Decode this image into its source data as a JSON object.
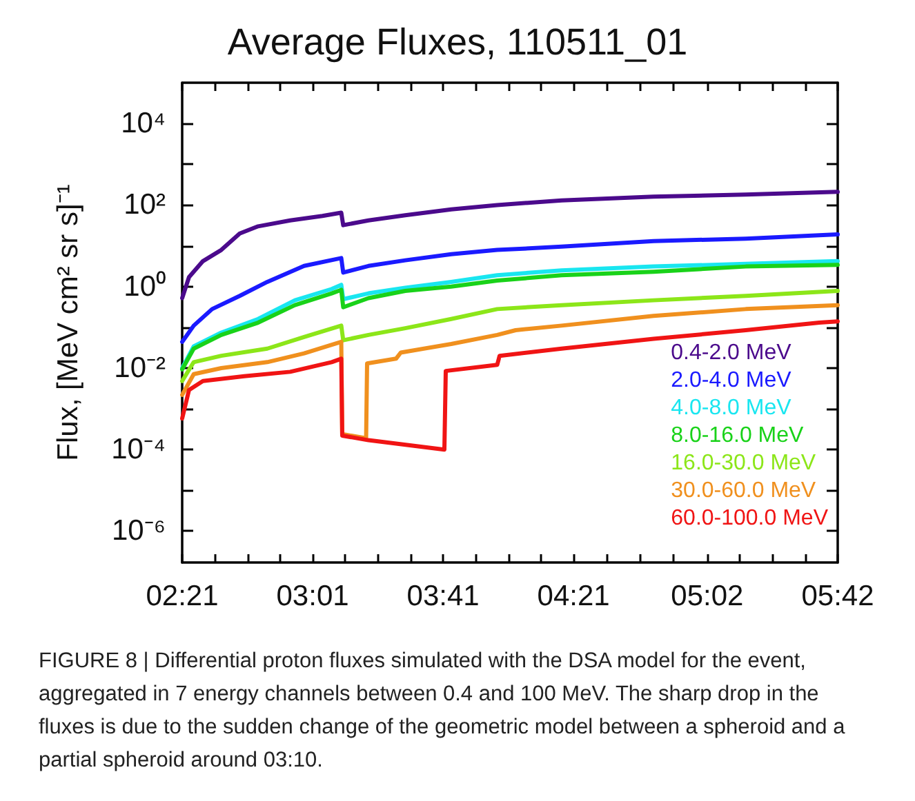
{
  "chart_data": {
    "type": "line",
    "title": "Average Fluxes, 110511_01",
    "ylabel": "Flux, [MeV cm² sr s]⁻¹",
    "log": "y",
    "grid": false,
    "legend": "bottom right",
    "marker": "none",
    "line_style": "solid",
    "xlim": [
      2.35,
      5.7
    ],
    "ylim": [
      1.7e-07,
      100000
    ],
    "xticks": [
      {
        "value": 2.35,
        "label": "02:21"
      },
      {
        "value": 2.5167,
        "label": null
      },
      {
        "value": 2.6833,
        "label": null
      },
      {
        "value": 2.85,
        "label": null
      },
      {
        "value": 3.0167,
        "label": "03:01"
      },
      {
        "value": 3.1833,
        "label": null
      },
      {
        "value": 3.35,
        "label": null
      },
      {
        "value": 3.5167,
        "label": null
      },
      {
        "value": 3.6833,
        "label": "03:41"
      },
      {
        "value": 3.85,
        "label": null
      },
      {
        "value": 4.0167,
        "label": null
      },
      {
        "value": 4.1833,
        "label": null
      },
      {
        "value": 4.35,
        "label": "04:21"
      },
      {
        "value": 4.5208,
        "label": null
      },
      {
        "value": 4.6917,
        "label": null
      },
      {
        "value": 4.8625,
        "label": null
      },
      {
        "value": 5.0333,
        "label": "05:02"
      },
      {
        "value": 5.2,
        "label": null
      },
      {
        "value": 5.3667,
        "label": null
      },
      {
        "value": 5.5333,
        "label": null
      },
      {
        "value": 5.7,
        "label": "05:42"
      }
    ],
    "yticks": [
      {
        "value": 1e-06,
        "label": "10⁻⁶"
      },
      {
        "value": 1e-05,
        "label": null
      },
      {
        "value": 0.0001,
        "label": "10⁻⁴"
      },
      {
        "value": 0.001,
        "label": null
      },
      {
        "value": 0.01,
        "label": "10⁻²"
      },
      {
        "value": 0.1,
        "label": null
      },
      {
        "value": 1,
        "label": "10⁰"
      },
      {
        "value": 10,
        "label": null
      },
      {
        "value": 100,
        "label": "10²"
      },
      {
        "value": 1000,
        "label": null
      },
      {
        "value": 10000,
        "label": "10⁴"
      }
    ],
    "series": [
      {
        "name": "0.4-2.0 MeV",
        "color": "#4b0a8c",
        "x": [
          2.35,
          2.385,
          2.456,
          2.55,
          2.644,
          2.738,
          2.902,
          3.067,
          3.163,
          3.173,
          3.302,
          3.49,
          3.725,
          3.96,
          4.289,
          4.759,
          5.23,
          5.7
        ],
        "values": [
          0.52,
          1.7,
          4.2,
          7.9,
          20,
          30,
          42,
          54,
          65,
          32,
          42,
          56,
          78,
          100,
          130,
          160,
          180,
          210
        ]
      },
      {
        "name": "2.0-4.0 MeV",
        "color": "#1a1aff",
        "x": [
          2.35,
          2.409,
          2.503,
          2.644,
          2.785,
          2.973,
          3.163,
          3.173,
          3.302,
          3.49,
          3.725,
          3.96,
          4.289,
          4.759,
          5.23,
          5.7
        ],
        "values": [
          0.044,
          0.11,
          0.28,
          0.59,
          1.3,
          3.2,
          5.0,
          2.2,
          3.2,
          4.4,
          6.2,
          7.9,
          9.5,
          13,
          15,
          19
        ]
      },
      {
        "name": "4.0-8.0 MeV",
        "color": "#19e6f0",
        "x": [
          2.35,
          2.409,
          2.55,
          2.738,
          2.926,
          3.114,
          3.163,
          3.173,
          3.302,
          3.49,
          3.725,
          3.96,
          4.289,
          4.759,
          5.23,
          5.7
        ],
        "values": [
          0.01,
          0.034,
          0.074,
          0.16,
          0.46,
          0.87,
          1.1,
          0.49,
          0.68,
          0.93,
          1.3,
          1.9,
          2.5,
          3.1,
          3.6,
          4.2
        ]
      },
      {
        "name": "8.0-16.0 MeV",
        "color": "#19d219",
        "x": [
          2.35,
          2.409,
          2.55,
          2.738,
          2.926,
          3.114,
          3.163,
          3.173,
          3.302,
          3.49,
          3.725,
          3.96,
          4.289,
          4.759,
          5.23,
          5.7
        ],
        "values": [
          0.0093,
          0.03,
          0.065,
          0.13,
          0.35,
          0.68,
          0.83,
          0.31,
          0.52,
          0.78,
          1.0,
          1.4,
          1.9,
          2.3,
          3.1,
          3.4
        ]
      },
      {
        "name": "16.0-30.0 MeV",
        "color": "#8ce619",
        "x": [
          2.35,
          2.409,
          2.55,
          2.785,
          2.973,
          3.163,
          3.173,
          3.302,
          3.49,
          3.725,
          3.96,
          4.289,
          4.759,
          5.23,
          5.7
        ],
        "values": [
          0.0048,
          0.014,
          0.02,
          0.03,
          0.058,
          0.11,
          0.048,
          0.065,
          0.095,
          0.16,
          0.28,
          0.35,
          0.46,
          0.59,
          0.78
        ]
      },
      {
        "name": "30.0-60.0 MeV",
        "color": "#f0901e",
        "x": [
          2.35,
          2.409,
          2.55,
          2.785,
          2.973,
          3.163,
          3.168,
          3.29,
          3.295,
          3.443,
          3.467,
          3.725,
          3.96,
          4.054,
          4.289,
          4.759,
          5.23,
          5.7
        ],
        "values": [
          0.0022,
          0.0071,
          0.01,
          0.014,
          0.023,
          0.044,
          0.00024,
          0.00019,
          0.013,
          0.017,
          0.024,
          0.039,
          0.065,
          0.085,
          0.11,
          0.19,
          0.28,
          0.35
        ]
      },
      {
        "name": "60.0-100.0 MeV",
        "color": "#f01414",
        "x": [
          2.35,
          2.385,
          2.456,
          2.667,
          2.902,
          3.114,
          3.163,
          3.168,
          3.302,
          3.69,
          3.697,
          3.96,
          3.972,
          4.289,
          4.759,
          5.23,
          5.606,
          5.7
        ],
        "values": [
          0.00058,
          0.0029,
          0.0048,
          0.0063,
          0.0081,
          0.014,
          0.017,
          0.00022,
          0.00017,
          0.0001,
          0.0085,
          0.012,
          0.02,
          0.03,
          0.052,
          0.085,
          0.13,
          0.14
        ]
      }
    ],
    "annotations": [
      "FIGURE 8 | Differential proton fluxes simulated with the DSA model for the event, aggregated in 7 energy channels between 0.4 and 100 MeV. The sharp drop in the fluxes is due to the sudden change of the geometric model between a spheroid and a partial spheroid around 03:10."
    ]
  }
}
